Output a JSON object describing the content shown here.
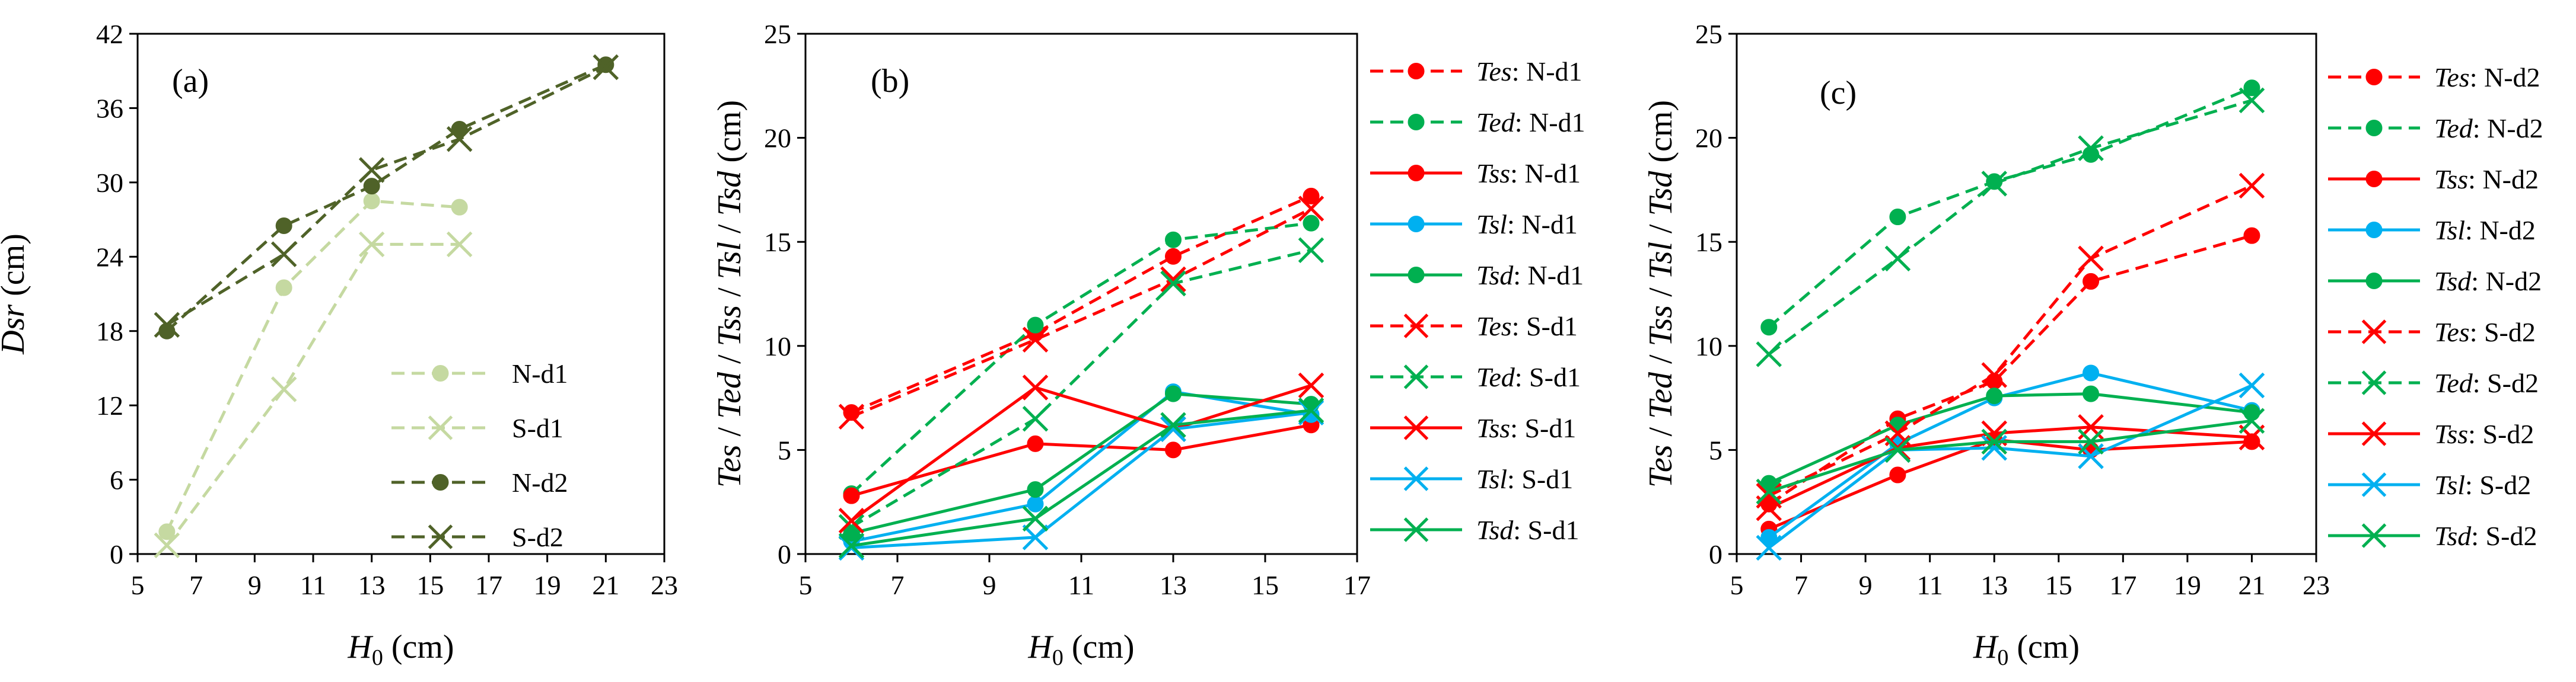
{
  "colors": {
    "red": "#FF0000",
    "green": "#00B050",
    "blue": "#00B0F0",
    "light_green": "#C5D9A1",
    "dark_green": "#4F6228"
  },
  "chart_data": [
    {
      "type": "line",
      "panel_label": "(a)",
      "xlabel": {
        "main": "H",
        "sub": "0",
        "unit": " (cm)"
      },
      "ylabel": {
        "parts": [
          {
            "t": "Dsr",
            "i": true
          },
          {
            "t": " (cm)",
            "i": false
          }
        ]
      },
      "xlim": [
        5,
        23
      ],
      "ylim": [
        0,
        42
      ],
      "xticks": [
        5,
        7,
        9,
        11,
        13,
        15,
        17,
        19,
        21,
        23
      ],
      "yticks": [
        0,
        6,
        12,
        18,
        24,
        30,
        36,
        42
      ],
      "legend_position": "bottom-right",
      "series": [
        {
          "name": "N-d1",
          "color": "light_green",
          "dash": true,
          "marker": "circle",
          "x": [
            6,
            10,
            13,
            16
          ],
          "y": [
            1.8,
            21.5,
            28.5,
            28.0
          ]
        },
        {
          "name": "S-d1",
          "color": "light_green",
          "dash": true,
          "marker": "x",
          "x": [
            6,
            10,
            13,
            16
          ],
          "y": [
            0.7,
            13.3,
            25.0,
            25.0
          ]
        },
        {
          "name": "N-d2",
          "color": "dark_green",
          "dash": true,
          "marker": "circle",
          "x": [
            6,
            10,
            13,
            16,
            21
          ],
          "y": [
            18.0,
            26.5,
            29.7,
            34.3,
            39.5
          ]
        },
        {
          "name": "S-d2",
          "color": "dark_green",
          "dash": true,
          "marker": "x",
          "x": [
            6,
            10,
            13,
            16,
            21
          ],
          "y": [
            18.5,
            24.2,
            31.0,
            33.5,
            39.3
          ]
        }
      ]
    },
    {
      "type": "line",
      "panel_label": "(b)",
      "xlabel": {
        "main": "H",
        "sub": "0",
        "unit": " (cm)"
      },
      "ylabel": {
        "parts": [
          {
            "t": "Tes",
            "i": true
          },
          {
            "t": " / ",
            "i": false
          },
          {
            "t": "Ted",
            "i": true
          },
          {
            "t": " / ",
            "i": false
          },
          {
            "t": "Tss",
            "i": true
          },
          {
            "t": " / ",
            "i": false
          },
          {
            "t": "Tsl",
            "i": true
          },
          {
            "t": " / ",
            "i": false
          },
          {
            "t": "Tsd",
            "i": true
          },
          {
            "t": " (cm)",
            "i": false
          }
        ]
      },
      "xlim": [
        5,
        17
      ],
      "ylim": [
        0,
        25
      ],
      "xticks": [
        5,
        7,
        9,
        11,
        13,
        15,
        17
      ],
      "yticks": [
        0,
        5,
        10,
        15,
        20,
        25
      ],
      "legend_position": "right-outside",
      "series": [
        {
          "name": "Tes",
          "suffix": ": N-d1",
          "color": "red",
          "dash": true,
          "marker": "circle",
          "x": [
            6,
            10,
            13,
            16
          ],
          "y": [
            6.8,
            10.6,
            14.3,
            17.2
          ]
        },
        {
          "name": "Ted",
          "suffix": ": N-d1",
          "color": "green",
          "dash": true,
          "marker": "circle",
          "x": [
            6,
            10,
            13,
            16
          ],
          "y": [
            2.9,
            11.0,
            15.1,
            15.9
          ]
        },
        {
          "name": "Tss",
          "suffix": ": N-d1",
          "color": "red",
          "dash": false,
          "marker": "circle",
          "x": [
            6,
            10,
            13,
            16
          ],
          "y": [
            2.8,
            5.3,
            5.0,
            6.2
          ]
        },
        {
          "name": "Tsl",
          "suffix": ": N-d1",
          "color": "blue",
          "dash": false,
          "marker": "circle",
          "x": [
            6,
            10,
            13,
            16
          ],
          "y": [
            0.6,
            2.4,
            7.8,
            6.7
          ]
        },
        {
          "name": "Tsd",
          "suffix": ": N-d1",
          "color": "green",
          "dash": false,
          "marker": "circle",
          "x": [
            6,
            10,
            13,
            16
          ],
          "y": [
            1.0,
            3.1,
            7.7,
            7.2
          ]
        },
        {
          "name": "Tes",
          "suffix": ": S-d1",
          "color": "red",
          "dash": true,
          "marker": "x",
          "x": [
            6,
            10,
            13,
            16
          ],
          "y": [
            6.6,
            10.3,
            13.2,
            16.6
          ]
        },
        {
          "name": "Ted",
          "suffix": ": S-d1",
          "color": "green",
          "dash": true,
          "marker": "x",
          "x": [
            6,
            10,
            13,
            16
          ],
          "y": [
            1.3,
            6.5,
            13.0,
            14.6
          ]
        },
        {
          "name": "Tss",
          "suffix": ": S-d1",
          "color": "red",
          "dash": false,
          "marker": "x",
          "x": [
            6,
            10,
            13,
            16
          ],
          "y": [
            1.6,
            8.0,
            6.0,
            8.1
          ]
        },
        {
          "name": "Tsl",
          "suffix": ": S-d1",
          "color": "blue",
          "dash": false,
          "marker": "x",
          "x": [
            6,
            10,
            13,
            16
          ],
          "y": [
            0.3,
            0.8,
            6.0,
            6.8
          ]
        },
        {
          "name": "Tsd",
          "suffix": ": S-d1",
          "color": "green",
          "dash": false,
          "marker": "x",
          "x": [
            6,
            10,
            13,
            16
          ],
          "y": [
            0.4,
            1.7,
            6.2,
            6.9
          ]
        }
      ]
    },
    {
      "type": "line",
      "panel_label": "(c)",
      "xlabel": {
        "main": "H",
        "sub": "0",
        "unit": " (cm)"
      },
      "ylabel": {
        "parts": [
          {
            "t": "Tes",
            "i": true
          },
          {
            "t": " / ",
            "i": false
          },
          {
            "t": "Ted",
            "i": true
          },
          {
            "t": " / ",
            "i": false
          },
          {
            "t": "Tss",
            "i": true
          },
          {
            "t": " / ",
            "i": false
          },
          {
            "t": "Tsl",
            "i": true
          },
          {
            "t": " / ",
            "i": false
          },
          {
            "t": "Tsd",
            "i": true
          },
          {
            "t": " (cm)",
            "i": false
          }
        ]
      },
      "xlim": [
        5,
        23
      ],
      "ylim": [
        0,
        25
      ],
      "xticks": [
        5,
        7,
        9,
        11,
        13,
        15,
        17,
        19,
        21,
        23
      ],
      "yticks": [
        0,
        5,
        10,
        15,
        20,
        25
      ],
      "legend_position": "right-outside",
      "series": [
        {
          "name": "Tes",
          "suffix": ": N-d2",
          "color": "red",
          "dash": true,
          "marker": "circle",
          "x": [
            6,
            10,
            13,
            16,
            21
          ],
          "y": [
            2.4,
            6.5,
            8.3,
            13.1,
            15.3
          ]
        },
        {
          "name": "Ted",
          "suffix": ": N-d2",
          "color": "green",
          "dash": true,
          "marker": "circle",
          "x": [
            6,
            10,
            13,
            16,
            21
          ],
          "y": [
            10.9,
            16.2,
            17.9,
            19.2,
            22.4
          ]
        },
        {
          "name": "Tss",
          "suffix": ": N-d2",
          "color": "red",
          "dash": false,
          "marker": "circle",
          "x": [
            6,
            10,
            13,
            16,
            21
          ],
          "y": [
            1.2,
            3.8,
            5.5,
            5.0,
            5.4
          ]
        },
        {
          "name": "Tsl",
          "suffix": ": N-d2",
          "color": "blue",
          "dash": false,
          "marker": "circle",
          "x": [
            6,
            10,
            13,
            16,
            21
          ],
          "y": [
            0.8,
            5.3,
            7.5,
            8.7,
            6.9
          ]
        },
        {
          "name": "Tsd",
          "suffix": ": N-d2",
          "color": "green",
          "dash": false,
          "marker": "circle",
          "x": [
            6,
            10,
            13,
            16,
            21
          ],
          "y": [
            3.4,
            6.2,
            7.6,
            7.7,
            6.8
          ]
        },
        {
          "name": "Tes",
          "suffix": ": S-d2",
          "color": "red",
          "dash": true,
          "marker": "x",
          "x": [
            6,
            10,
            13,
            16,
            21
          ],
          "y": [
            2.8,
            5.8,
            8.6,
            14.2,
            17.7
          ]
        },
        {
          "name": "Ted",
          "suffix": ": S-d2",
          "color": "green",
          "dash": true,
          "marker": "x",
          "x": [
            6,
            10,
            13,
            16,
            21
          ],
          "y": [
            9.6,
            14.2,
            17.8,
            19.5,
            21.8
          ]
        },
        {
          "name": "Tss",
          "suffix": ": S-d2",
          "color": "red",
          "dash": false,
          "marker": "x",
          "x": [
            6,
            10,
            13,
            16,
            21
          ],
          "y": [
            2.2,
            5.1,
            5.8,
            6.1,
            5.6
          ]
        },
        {
          "name": "Tsl",
          "suffix": ": S-d2",
          "color": "blue",
          "dash": false,
          "marker": "x",
          "x": [
            6,
            10,
            13,
            16,
            21
          ],
          "y": [
            0.3,
            5.0,
            5.1,
            4.7,
            8.1
          ]
        },
        {
          "name": "Tsd",
          "suffix": ": S-d2",
          "color": "green",
          "dash": false,
          "marker": "x",
          "x": [
            6,
            10,
            13,
            16,
            21
          ],
          "y": [
            3.0,
            5.0,
            5.4,
            5.4,
            6.4
          ]
        }
      ]
    }
  ]
}
